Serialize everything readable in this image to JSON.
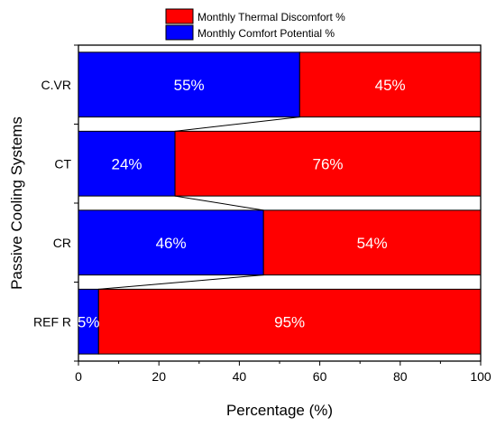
{
  "chart_data": {
    "type": "bar",
    "orientation": "horizontal",
    "stacked": true,
    "categories": [
      "C.VR",
      "CT",
      "CR",
      "REF R"
    ],
    "series": [
      {
        "name": "Monthly Comfort Potential %",
        "color": "#0000ff",
        "values": [
          55,
          24,
          46,
          5
        ],
        "labels": [
          "55%",
          "24%",
          "46%",
          "5%"
        ]
      },
      {
        "name": "Monthly Thermal Discomfort %",
        "color": "#ff0000",
        "values": [
          45,
          76,
          54,
          95
        ],
        "labels": [
          "45%",
          "76%",
          "54%",
          "95%"
        ]
      }
    ],
    "xlabel": "Percentage (%)",
    "ylabel": "Passive Cooling Systems",
    "xlim": [
      0,
      100
    ],
    "xticks": [
      0,
      20,
      40,
      60,
      80,
      100
    ],
    "legend_position": "top-center",
    "legend_order": [
      "Monthly Thermal Discomfort %",
      "Monthly Comfort Potential %"
    ],
    "connector_lines": true
  }
}
